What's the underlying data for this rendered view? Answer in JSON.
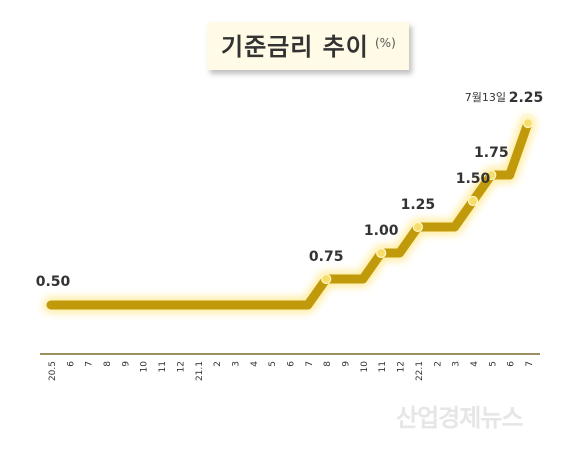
{
  "title": "기준금리 추이",
  "unit": "(%)",
  "annotation": "7월13일",
  "watermark": "산업경제뉴스",
  "colors": {
    "line": "#c19a0b",
    "marker": "#f7de6a",
    "axis": "#7a6a2a",
    "label": "#333333"
  },
  "chart_data": {
    "type": "line",
    "categories": [
      "20.5",
      "6",
      "7",
      "8",
      "9",
      "10",
      "11",
      "12",
      "21.1",
      "2",
      "3",
      "4",
      "5",
      "6",
      "7",
      "8",
      "9",
      "10",
      "11",
      "12",
      "22.1",
      "2",
      "3",
      "4",
      "5",
      "6",
      "7"
    ],
    "values": [
      0.5,
      0.5,
      0.5,
      0.5,
      0.5,
      0.5,
      0.5,
      0.5,
      0.5,
      0.5,
      0.5,
      0.5,
      0.5,
      0.5,
      0.5,
      0.75,
      0.75,
      0.75,
      1.0,
      1.0,
      1.25,
      1.25,
      1.25,
      1.5,
      1.75,
      1.75,
      2.25
    ],
    "change_points": [
      {
        "index": 0,
        "value": 0.5,
        "label": "0.50"
      },
      {
        "index": 15,
        "value": 0.75,
        "label": "0.75"
      },
      {
        "index": 18,
        "value": 1.0,
        "label": "1.00"
      },
      {
        "index": 20,
        "value": 1.25,
        "label": "1.25"
      },
      {
        "index": 23,
        "value": 1.5,
        "label": "1.50"
      },
      {
        "index": 24,
        "value": 1.75,
        "label": "1.75"
      },
      {
        "index": 26,
        "value": 2.25,
        "label": "2.25"
      }
    ],
    "ylim": [
      0,
      2.5
    ],
    "grid": false,
    "xlabel": "",
    "ylabel": ""
  }
}
